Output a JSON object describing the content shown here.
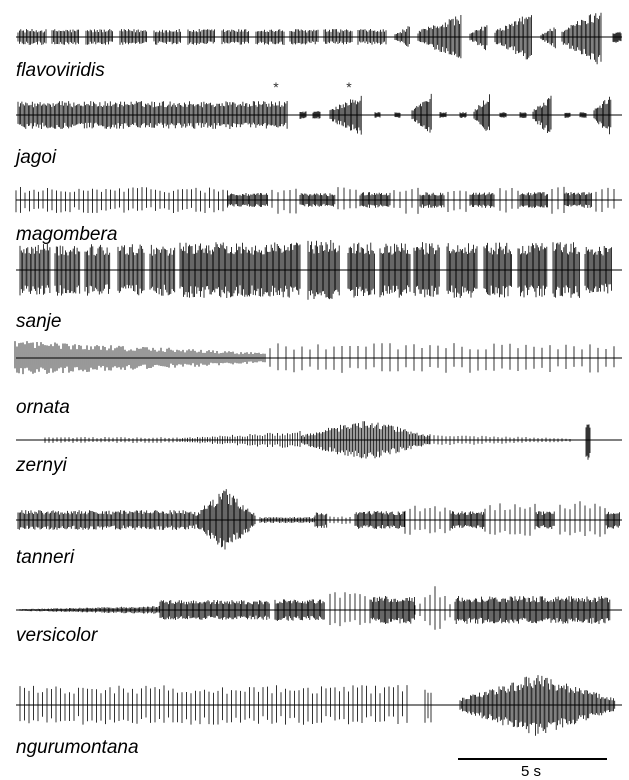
{
  "labels": [
    "flavoviridis",
    "jagoi",
    "magombera",
    "sanje",
    "ornata",
    "zernyi",
    "tanneri",
    "versicolor",
    "ngurumontana"
  ],
  "markers": [
    "*",
    "*"
  ],
  "scale_bar": {
    "label": "5 s"
  }
}
